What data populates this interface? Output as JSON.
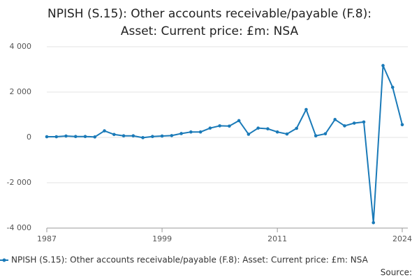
{
  "chart_data": {
    "type": "line",
    "title": "NPISH (S.15): Other accounts receivable/payable (F.8): Asset: Current price: £m: NSA",
    "x": [
      1987,
      1988,
      1989,
      1990,
      1991,
      1992,
      1993,
      1994,
      1995,
      1996,
      1997,
      1998,
      1999,
      2000,
      2001,
      2002,
      2003,
      2004,
      2005,
      2006,
      2007,
      2008,
      2009,
      2010,
      2011,
      2012,
      2013,
      2014,
      2015,
      2016,
      2017,
      2018,
      2019,
      2020,
      2021,
      2022,
      2023,
      2024
    ],
    "series": [
      {
        "name": "NPISH (S.15): Other accounts receivable/payable (F.8): Asset: Current price: £m: NSA",
        "color": "#1a7ab8",
        "values": [
          30,
          30,
          60,
          40,
          40,
          20,
          290,
          130,
          70,
          70,
          -10,
          40,
          60,
          80,
          170,
          240,
          240,
          410,
          510,
          500,
          740,
          140,
          410,
          380,
          240,
          150,
          400,
          1230,
          70,
          160,
          790,
          510,
          630,
          680,
          -3760,
          3170,
          2210,
          560
        ]
      }
    ],
    "xlim": [
      1987,
      2024
    ],
    "xticks": [
      1987,
      1999,
      2011,
      2024
    ],
    "ylim": [
      -4000,
      4000
    ],
    "yticks": [
      {
        "value": 4000,
        "label": "4 000"
      },
      {
        "value": 2000,
        "label": "2 000"
      },
      0,
      {
        "value": -2000,
        "label": "-2 000"
      },
      {
        "value": -4000,
        "label": "-4 000"
      }
    ],
    "grid": true,
    "source": "Source:"
  }
}
